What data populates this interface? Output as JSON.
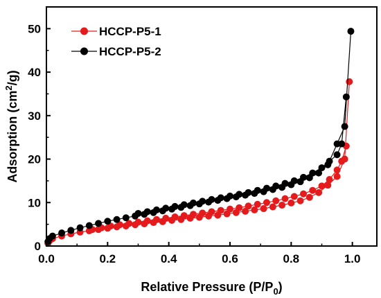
{
  "chart_data": {
    "type": "line",
    "xlabel": "Relative Pressure (P/P",
    "xlabel_sub": "0",
    "xlabel_end": ")",
    "ylabel": "Adsorption (cm",
    "ylabel_sup": "2",
    "ylabel_end": "/g)",
    "xlim": [
      0.0,
      1.08
    ],
    "ylim": [
      0,
      55
    ],
    "xticks": [
      "0.0",
      "0.2",
      "0.4",
      "0.6",
      "0.8",
      "1.0"
    ],
    "yticks": [
      "0",
      "10",
      "20",
      "30",
      "40",
      "50"
    ],
    "legend_position": "top-left",
    "grid": false,
    "series": [
      {
        "name": "HCCP-P5-1",
        "color": "#e41a1c",
        "adsorption": {
          "x": [
            0.005,
            0.01,
            0.02,
            0.05,
            0.08,
            0.11,
            0.14,
            0.17,
            0.2,
            0.23,
            0.26,
            0.29,
            0.32,
            0.35,
            0.38,
            0.41,
            0.44,
            0.47,
            0.5,
            0.53,
            0.56,
            0.59,
            0.62,
            0.65,
            0.68,
            0.71,
            0.74,
            0.77,
            0.8,
            0.83,
            0.86,
            0.89,
            0.92,
            0.95,
            0.975,
            0.99
          ],
          "y": [
            0.6,
            1.2,
            1.7,
            2.3,
            2.8,
            3.2,
            3.5,
            3.8,
            4.1,
            4.4,
            4.6,
            4.9,
            5.1,
            5.4,
            5.6,
            5.9,
            6.1,
            6.4,
            6.6,
            6.9,
            7.1,
            7.4,
            7.7,
            8.0,
            8.3,
            8.6,
            9.0,
            9.4,
            9.9,
            10.4,
            11.2,
            12.3,
            14.0,
            16.0,
            20.0,
            37.8
          ]
        },
        "desorption": {
          "x": [
            0.98,
            0.965,
            0.95,
            0.925,
            0.9,
            0.87,
            0.84,
            0.81,
            0.78,
            0.75,
            0.72,
            0.69,
            0.66,
            0.63,
            0.6,
            0.57,
            0.54,
            0.51,
            0.48,
            0.45,
            0.42,
            0.39,
            0.36,
            0.33,
            0.3,
            0.27,
            0.24,
            0.21,
            0.18,
            0.15
          ],
          "y": [
            23.0,
            19.5,
            17.5,
            15.3,
            13.8,
            12.8,
            12.0,
            11.4,
            10.9,
            10.4,
            10.0,
            9.6,
            9.2,
            8.8,
            8.5,
            8.2,
            7.9,
            7.6,
            7.3,
            7.0,
            6.7,
            6.4,
            6.1,
            5.8,
            5.5,
            5.2,
            4.9,
            4.6,
            4.2,
            3.8
          ]
        }
      },
      {
        "name": "HCCP-P5-2",
        "color": "#000000",
        "adsorption": {
          "x": [
            0.005,
            0.01,
            0.02,
            0.05,
            0.08,
            0.11,
            0.14,
            0.17,
            0.2,
            0.23,
            0.26,
            0.29,
            0.32,
            0.35,
            0.38,
            0.41,
            0.44,
            0.47,
            0.5,
            0.53,
            0.56,
            0.59,
            0.62,
            0.65,
            0.68,
            0.71,
            0.74,
            0.77,
            0.8,
            0.83,
            0.86,
            0.89,
            0.92,
            0.95,
            0.975,
            0.995
          ],
          "y": [
            1.0,
            1.7,
            2.3,
            3.0,
            3.6,
            4.2,
            4.7,
            5.2,
            5.7,
            6.1,
            6.5,
            6.9,
            7.3,
            7.7,
            8.1,
            8.5,
            8.9,
            9.3,
            9.7,
            10.1,
            10.5,
            10.9,
            11.3,
            11.7,
            12.1,
            12.5,
            13.0,
            13.5,
            14.1,
            14.8,
            15.7,
            16.8,
            18.7,
            23.5,
            27.5,
            49.4
          ]
        },
        "desorption": {
          "x": [
            0.98,
            0.965,
            0.95,
            0.925,
            0.9,
            0.87,
            0.84,
            0.81,
            0.78,
            0.75,
            0.72,
            0.69,
            0.66,
            0.63,
            0.6,
            0.57,
            0.54,
            0.51,
            0.48,
            0.45,
            0.42,
            0.39,
            0.36,
            0.33,
            0.3
          ],
          "y": [
            34.3,
            23.5,
            21.0,
            19.5,
            18.0,
            16.8,
            15.8,
            15.0,
            14.4,
            13.8,
            13.3,
            12.8,
            12.3,
            11.9,
            11.5,
            11.1,
            10.7,
            10.3,
            9.9,
            9.5,
            9.1,
            8.7,
            8.3,
            7.9,
            7.5
          ]
        }
      }
    ]
  }
}
